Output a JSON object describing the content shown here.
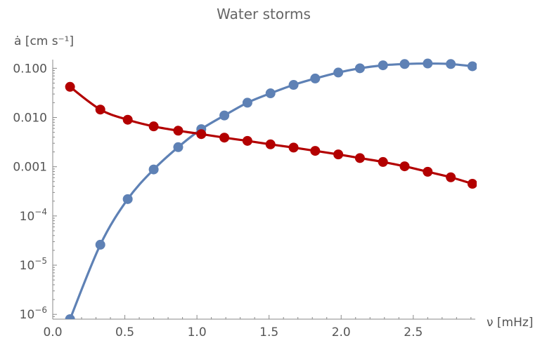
{
  "chart_data": {
    "type": "line",
    "title": "Water storms",
    "xlabel": "ν [mHz]",
    "ylabel": "ȧ [cm s⁻¹]",
    "yscale": "log",
    "xlim": [
      0.0,
      2.93
    ],
    "ylim": [
      8e-07,
      0.15
    ],
    "grid": false,
    "x_ticks": [
      {
        "value": 0.0,
        "label": "0.0"
      },
      {
        "value": 0.5,
        "label": "0.5"
      },
      {
        "value": 1.0,
        "label": "1.0"
      },
      {
        "value": 1.5,
        "label": "1.5"
      },
      {
        "value": 2.0,
        "label": "2.0"
      },
      {
        "value": 2.5,
        "label": "2.5"
      }
    ],
    "y_ticks": [
      {
        "value": 1e-06,
        "base": "10",
        "exp": "−6"
      },
      {
        "value": 1e-05,
        "base": "10",
        "exp": "−5"
      },
      {
        "value": 0.0001,
        "base": "10",
        "exp": "−4"
      },
      {
        "value": 0.001,
        "base": "0.001",
        "exp": ""
      },
      {
        "value": 0.01,
        "base": "0.010",
        "exp": ""
      },
      {
        "value": 0.1,
        "base": "0.100",
        "exp": ""
      }
    ],
    "series": [
      {
        "color": "#5e81b5",
        "x": [
          0.12,
          0.33,
          0.52,
          0.7,
          0.87,
          1.03,
          1.19,
          1.35,
          1.51,
          1.67,
          1.82,
          1.98,
          2.13,
          2.29,
          2.44,
          2.6,
          2.76,
          2.91
        ],
        "y": [
          8e-07,
          2.6e-05,
          0.00022,
          0.00088,
          0.0025,
          0.0058,
          0.011,
          0.02,
          0.031,
          0.046,
          0.062,
          0.082,
          0.1,
          0.115,
          0.122,
          0.125,
          0.122,
          0.11
        ]
      },
      {
        "color": "#b30000",
        "x": [
          0.12,
          0.33,
          0.52,
          0.7,
          0.87,
          1.03,
          1.19,
          1.35,
          1.51,
          1.67,
          1.82,
          1.98,
          2.13,
          2.29,
          2.44,
          2.6,
          2.76,
          2.91
        ],
        "y": [
          0.042,
          0.0145,
          0.009,
          0.0066,
          0.0054,
          0.0046,
          0.0039,
          0.00335,
          0.00285,
          0.00245,
          0.0021,
          0.00178,
          0.0015,
          0.00125,
          0.00102,
          0.00079,
          0.00061,
          0.00045
        ]
      }
    ]
  }
}
